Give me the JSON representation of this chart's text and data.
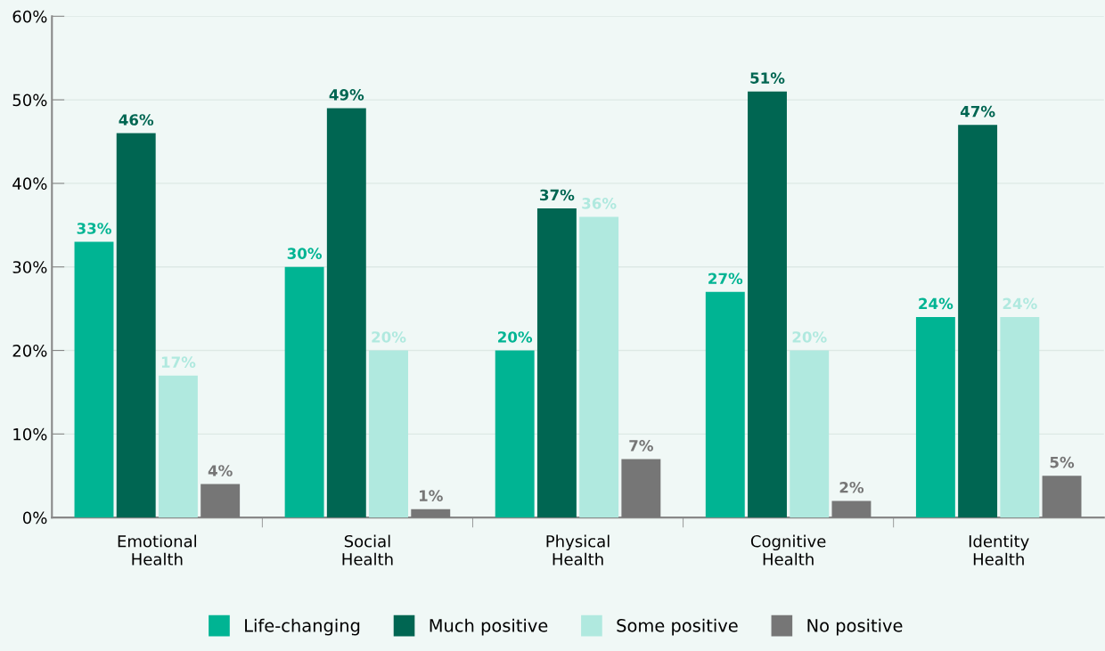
{
  "chart_data": {
    "type": "bar",
    "categories": [
      "Emotional\nHealth",
      "Social\nHealth",
      "Physical\nHealth",
      "Cognitive\nHealth",
      "Identity\nHealth"
    ],
    "series": [
      {
        "name": "Life-changing",
        "color": "#00b493",
        "values": [
          33,
          30,
          20,
          27,
          24
        ],
        "value_labels": [
          "33%",
          "30%",
          "20%",
          "27%",
          "24%"
        ]
      },
      {
        "name": "Much positive",
        "color": "#006652",
        "values": [
          46,
          49,
          37,
          51,
          47
        ],
        "value_labels": [
          "46%",
          "49%",
          "37%",
          "51%",
          "47%"
        ]
      },
      {
        "name": "Some positive",
        "color": "#b0e9df",
        "values": [
          17,
          20,
          36,
          20,
          24
        ],
        "value_labels": [
          "17%",
          "20%",
          "36%",
          "20%",
          "24%"
        ]
      },
      {
        "name": "No positive",
        "color": "#767676",
        "values": [
          4,
          1,
          7,
          2,
          5
        ],
        "value_labels": [
          "4%",
          "1%",
          "7%",
          "2%",
          "5%"
        ]
      }
    ],
    "ylim": [
      0,
      60
    ],
    "yticks": [
      {
        "value": 0,
        "label": "0%"
      },
      {
        "value": 10,
        "label": "10%"
      },
      {
        "value": 20,
        "label": "20%"
      },
      {
        "value": 30,
        "label": "30%"
      },
      {
        "value": 40,
        "label": "40%"
      },
      {
        "value": 50,
        "label": "50%"
      },
      {
        "value": 60,
        "label": "60%"
      }
    ],
    "grid": "y",
    "legend": "bottom"
  }
}
